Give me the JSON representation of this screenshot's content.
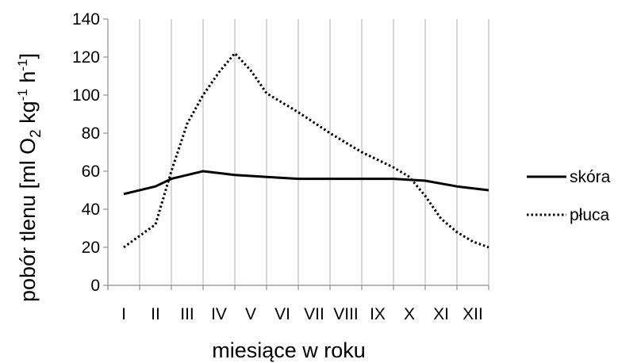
{
  "chart_data": {
    "type": "line",
    "title": "",
    "xlabel": "miesiące w roku",
    "ylabel": {
      "pre": "pobór tlenu [ml O",
      "sub": "2",
      "mid1": " kg",
      "sup1": "-1",
      "mid2": " h",
      "sup2": "-1",
      "post": "]"
    },
    "categories": [
      "I",
      "II",
      "III",
      "IV",
      "V",
      "VI",
      "VII",
      "VIII",
      "IX",
      "X",
      "XI",
      "XII"
    ],
    "ylim": [
      0,
      140
    ],
    "yticks": [
      0,
      20,
      40,
      60,
      80,
      100,
      120,
      140
    ],
    "grid": "vertical",
    "legend_position": "right",
    "series": [
      {
        "name": "skóra",
        "style": "solid",
        "color": "#000000",
        "x": [
          1,
          2,
          2.5,
          3.5,
          4.5,
          5.5,
          6.5,
          7.5,
          8.5,
          9.5,
          10.5,
          11.5,
          12.5
        ],
        "values": [
          48,
          52,
          56,
          60,
          58,
          57,
          56,
          56,
          56,
          56,
          55,
          52,
          50
        ]
      },
      {
        "name": "płuca",
        "style": "dotted",
        "color": "#000000",
        "x": [
          1,
          2,
          2.5,
          3,
          3.5,
          4,
          4.5,
          5,
          5.5,
          6.5,
          7.5,
          8.5,
          9,
          9.5,
          10,
          10.5,
          11,
          11.5,
          12,
          12.5
        ],
        "values": [
          20,
          32,
          60,
          85,
          100,
          112,
          122,
          113,
          101,
          91,
          80,
          70,
          66,
          62,
          57,
          47,
          35,
          28,
          23,
          20
        ]
      }
    ]
  }
}
